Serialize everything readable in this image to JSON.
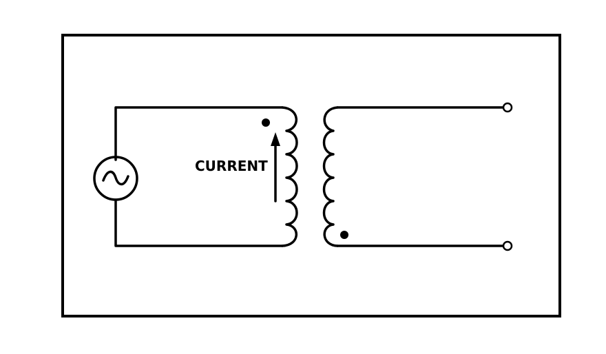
{
  "diagram": {
    "current_label": "CURRENT",
    "colors": {
      "line": "#000000",
      "background": "#ffffff"
    },
    "components": {
      "source": "ac-voltage-source",
      "primary_coil": "primary-winding",
      "secondary_coil": "secondary-winding",
      "polarity_marks": 2,
      "output_terminals": 2
    }
  }
}
